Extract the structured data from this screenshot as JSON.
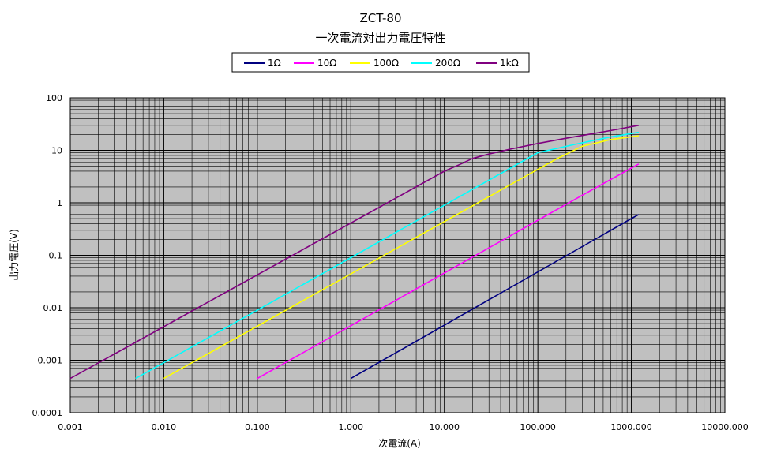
{
  "chart_data": {
    "type": "line",
    "title": "ZCT-80",
    "subtitle": "一次電流対出力電圧特性",
    "xlabel": "一次電流(A)",
    "ylabel": "出力電圧(V)",
    "xscale": "log",
    "yscale": "log",
    "xlim": [
      0.001,
      10000
    ],
    "ylim": [
      0.0001,
      100
    ],
    "grid": true,
    "legend": "top-center",
    "plot_background": "#c0c0c0",
    "x_tick_labels": [
      "0.001",
      "0.010",
      "0.100",
      "1.000",
      "10.000",
      "100.000",
      "1000.000",
      "10000.000"
    ],
    "y_tick_labels": [
      "0.0001",
      "0.001",
      "0.01",
      "0.1",
      "1",
      "10",
      "100"
    ],
    "series": [
      {
        "name": "1Ω",
        "color": "#000080",
        "x": [
          1,
          1000,
          1200
        ],
        "y": [
          0.00045,
          0.5,
          0.6
        ]
      },
      {
        "name": "10Ω",
        "color": "#ff00ff",
        "x": [
          0.1,
          300,
          1200
        ],
        "y": [
          0.00045,
          1.4,
          5.5
        ]
      },
      {
        "name": "100Ω",
        "color": "#ffff00",
        "x": [
          0.01,
          150,
          300,
          600,
          1200
        ],
        "y": [
          0.00045,
          6.5,
          12,
          16,
          19
        ]
      },
      {
        "name": "200Ω",
        "color": "#00ffff",
        "x": [
          0.005,
          100,
          250,
          600,
          1200
        ],
        "y": [
          0.00045,
          9,
          13,
          18,
          22
        ]
      },
      {
        "name": "1kΩ",
        "color": "#800080",
        "x": [
          0.001,
          10,
          15,
          20,
          30,
          50,
          100,
          200,
          400,
          700,
          1200
        ],
        "y": [
          0.00045,
          4,
          5.5,
          7,
          8.5,
          10.5,
          13.5,
          17,
          21,
          25,
          30
        ]
      }
    ]
  }
}
